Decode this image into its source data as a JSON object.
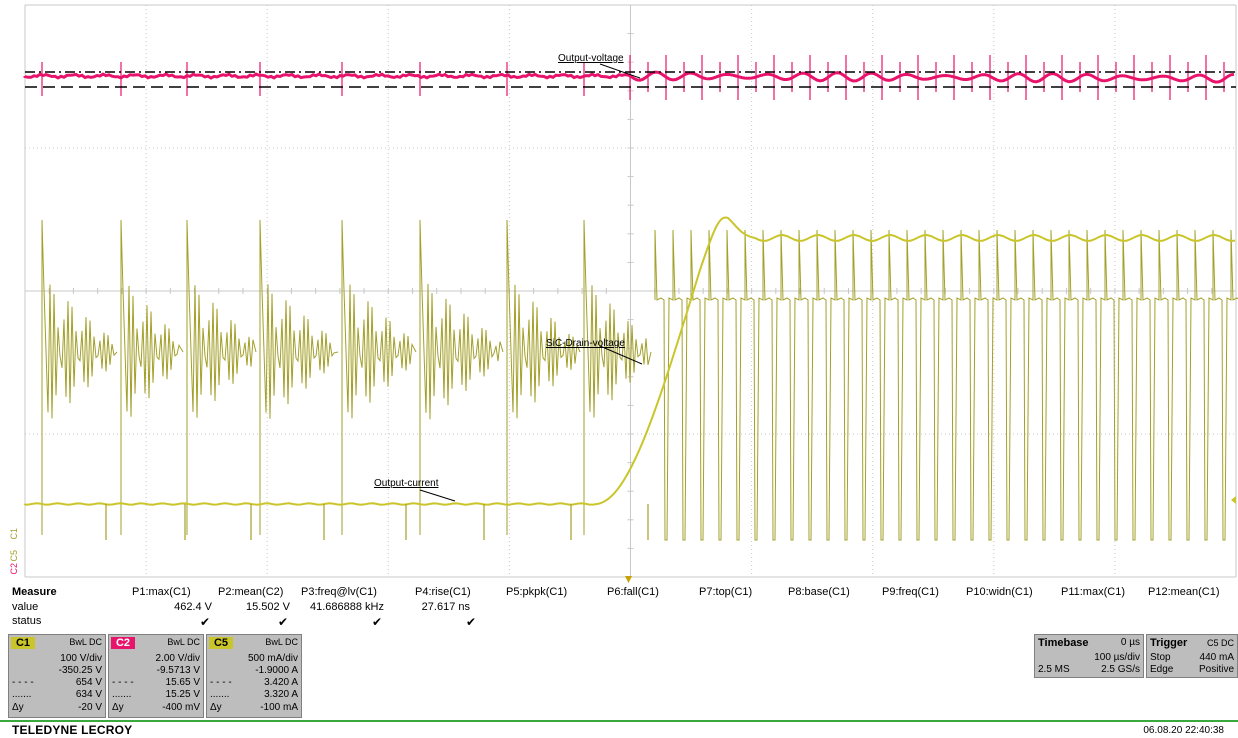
{
  "colors": {
    "c1": "#a3a02a",
    "c2": "#e8146c",
    "c5": "#c9c52a",
    "grid": "#c8c8c8",
    "panel": "#bdbdbd",
    "footer_line": "#3aa83a"
  },
  "trace_labels": {
    "output_voltage": "Output-voltage",
    "sic_drain_voltage": "SiC-Drain-voltage",
    "output_current": "Output-current"
  },
  "channel_markers": [
    "C1",
    "C5",
    "C2"
  ],
  "measure": {
    "title": "Measure",
    "row_value": "value",
    "row_status": "status",
    "params": [
      {
        "name": "P1:max(C1)",
        "value": "462.4 V",
        "status": "✔"
      },
      {
        "name": "P2:mean(C2)",
        "value": "15.502 V",
        "status": "✔"
      },
      {
        "name": "P3:freq@lv(C1)",
        "value": "41.686888 kHz",
        "status": "✔"
      },
      {
        "name": "P4:rise(C1)",
        "value": "27.617 ns",
        "status": "✔"
      },
      {
        "name": "P5:pkpk(C1)",
        "value": "",
        "status": ""
      },
      {
        "name": "P6:fall(C1)",
        "value": "",
        "status": ""
      },
      {
        "name": "P7:top(C1)",
        "value": "",
        "status": ""
      },
      {
        "name": "P8:base(C1)",
        "value": "",
        "status": ""
      },
      {
        "name": "P9:freq(C1)",
        "value": "",
        "status": ""
      },
      {
        "name": "P10:widn(C1)",
        "value": "",
        "status": ""
      },
      {
        "name": "P11:max(C1)",
        "value": "",
        "status": ""
      },
      {
        "name": "P12:mean(C1)",
        "value": "",
        "status": ""
      }
    ]
  },
  "channels": [
    {
      "id": "C1",
      "coupling": "BwL DC",
      "vdiv": "100 V/div",
      "offset": "-350.25 V",
      "cursor1": "654 V",
      "cursor2": "634 V",
      "delta_label": "Δy",
      "delta": "-20 V"
    },
    {
      "id": "C2",
      "coupling": "BwL DC",
      "vdiv": "2.00 V/div",
      "offset": "-9.5713 V",
      "cursor1": "15.65 V",
      "cursor2": "15.25 V",
      "delta_label": "Δy",
      "delta": "-400 mV"
    },
    {
      "id": "C5",
      "coupling": "BwL DC",
      "vdiv": "500 mA/div",
      "offset": "-1.9000 A",
      "cursor1": "3.420 A",
      "cursor2": "3.320 A",
      "delta_label": "Δy",
      "delta": "-100 mA"
    }
  ],
  "timebase": {
    "title": "Timebase",
    "delay": "0 µs",
    "tdiv": "100 µs/div",
    "samples": "2.5 MS",
    "rate": "2.5 GS/s"
  },
  "trigger": {
    "title": "Trigger",
    "source": "C5 DC",
    "mode": "Stop",
    "level": "440 mA",
    "type": "Edge",
    "slope": "Positive"
  },
  "brand": "TELEDYNE LECROY",
  "timestamp": "06.08.20 22:40:38"
}
